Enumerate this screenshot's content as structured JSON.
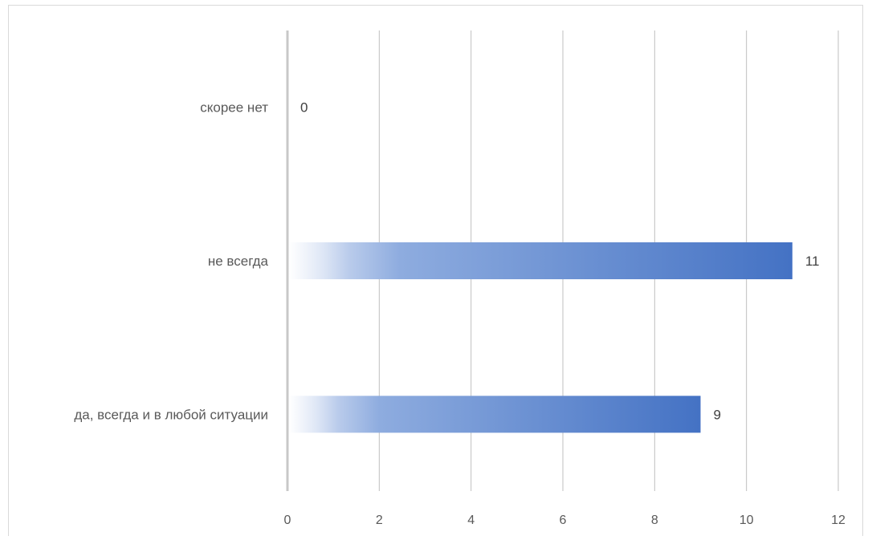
{
  "chart_data": {
    "type": "bar",
    "orientation": "horizontal",
    "categories": [
      "скорее нет",
      "не всегда",
      "да, всегда и в любой ситуации"
    ],
    "values": [
      0,
      11,
      9
    ],
    "data_labels": [
      "0",
      "11",
      "9"
    ],
    "title": "",
    "xlabel": "",
    "ylabel": "",
    "xlim": [
      0,
      12
    ],
    "x_ticks": [
      "0",
      "2",
      "4",
      "6",
      "8",
      "10",
      "12"
    ],
    "grid": "vertical",
    "legend": "none",
    "bar_color_start": "#ffffff",
    "bar_color_end": "#4472c4",
    "gridline_color": "#bfbfbf"
  }
}
